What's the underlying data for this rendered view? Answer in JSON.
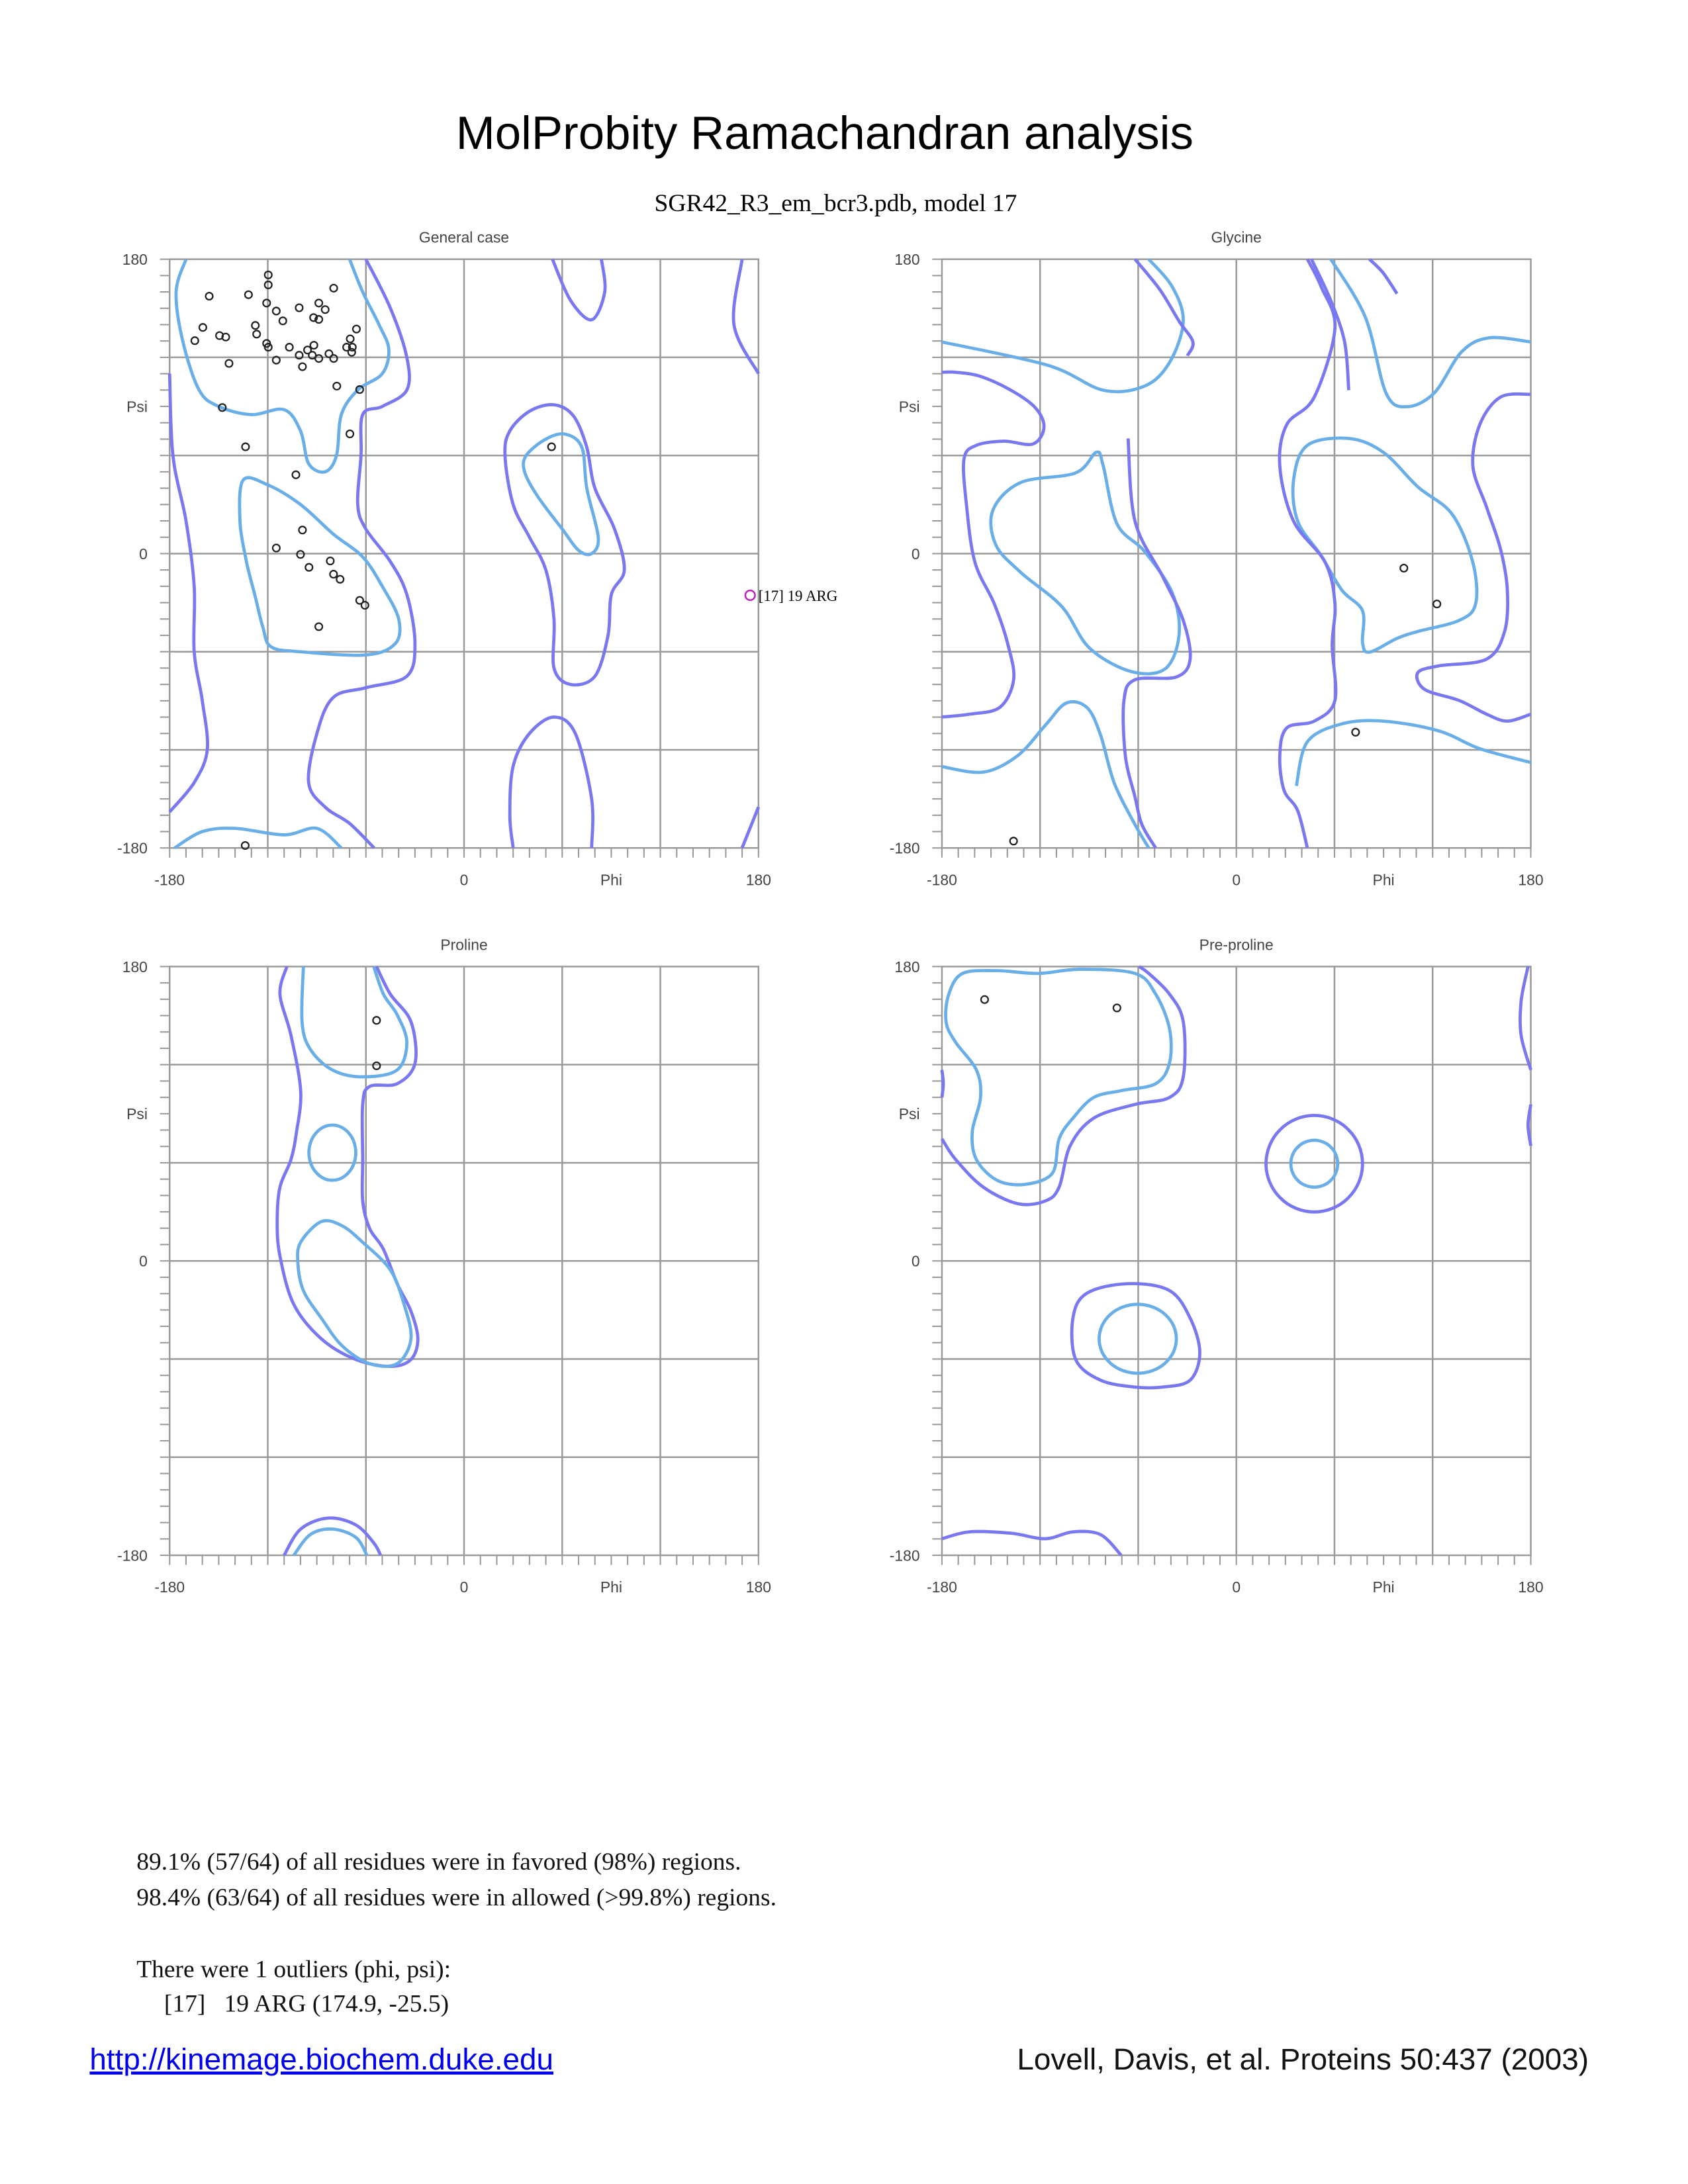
{
  "title": "MolProbity Ramachandran analysis",
  "subtitle": "SGR42_R3_em_bcr3.pdb, model 17",
  "axis": {
    "x_ticks": [
      "-180",
      "0",
      "Phi",
      "180"
    ],
    "y_ticks": [
      "180",
      "Psi",
      "0",
      "-180"
    ]
  },
  "colors": {
    "favored_contour": "#6aaee8",
    "allowed_contour": "#7a78f0",
    "outlier": "#c020c0",
    "points": "#222222",
    "link": "#0000ee"
  },
  "chart_data": [
    {
      "type": "scatter",
      "title": "General case",
      "xlabel": "Phi",
      "ylabel": "Psi",
      "xlim": [
        -180,
        180
      ],
      "ylim": [
        -180,
        180
      ],
      "grid": true,
      "points": [
        [
          -119.7,
          170.4
        ],
        [
          -119.7,
          164.3
        ],
        [
          -79.7,
          162.3
        ],
        [
          -155.8,
          157.4
        ],
        [
          -131.8,
          158.3
        ],
        [
          -120.7,
          153.2
        ],
        [
          -100.8,
          150.3
        ],
        [
          -88.8,
          153.2
        ],
        [
          -84.9,
          149.2
        ],
        [
          -114.8,
          148.3
        ],
        [
          -110.8,
          142.3
        ],
        [
          -92.0,
          144.3
        ],
        [
          -88.8,
          143.2
        ],
        [
          -159.7,
          138.3
        ],
        [
          -127.6,
          139.5
        ],
        [
          -126.8,
          134.2
        ],
        [
          -149.5,
          133.3
        ],
        [
          -145.7,
          132.4
        ],
        [
          -164.6,
          130.2
        ],
        [
          -120.7,
          128.5
        ],
        [
          -119.7,
          126.2
        ],
        [
          -106.8,
          126.2
        ],
        [
          -91.8,
          127.4
        ],
        [
          -95.7,
          124.5
        ],
        [
          -100.8,
          121.3
        ],
        [
          -92.8,
          121.3
        ],
        [
          -88.8,
          119.3
        ],
        [
          -82.6,
          122.2
        ],
        [
          -79.7,
          119.3
        ],
        [
          -71.8,
          126.2
        ],
        [
          -69.6,
          131.3
        ],
        [
          -68.3,
          126.2
        ],
        [
          -68.7,
          123.1
        ],
        [
          -65.8,
          137.3
        ],
        [
          -114.8,
          118.3
        ],
        [
          -98.8,
          114.3
        ],
        [
          -143.7,
          116.3
        ],
        [
          -77.8,
          102.4
        ],
        [
          -63.8,
          100.3
        ],
        [
          -147.8,
          89.3
        ],
        [
          -69.8,
          73.2
        ],
        [
          -133.6,
          65.3
        ],
        [
          -102.8,
          48.2
        ],
        [
          -98.8,
          14.4
        ],
        [
          -114.8,
          3.4
        ],
        [
          -100.0,
          -0.5
        ],
        [
          -94.8,
          -8.4
        ],
        [
          -81.8,
          -4.5
        ],
        [
          -79.8,
          -12.6
        ],
        [
          -75.8,
          -15.7
        ],
        [
          -63.8,
          -28.6
        ],
        [
          -60.6,
          -31.6
        ],
        [
          -88.8,
          -44.7
        ],
        [
          -133.8,
          -178.5
        ],
        [
          53.5,
          65.3
        ]
      ],
      "outliers": [
        {
          "label": "[17]   19 ARG",
          "phi": 174.9,
          "psi": -25.5
        }
      ]
    },
    {
      "type": "scatter",
      "title": "Glycine",
      "xlabel": "Phi",
      "ylabel": "Psi",
      "xlim": [
        -180,
        180
      ],
      "ylim": [
        -180,
        180
      ],
      "grid": true,
      "points": [
        [
          102.4,
          -8.9
        ],
        [
          122.6,
          -30.8
        ],
        [
          72.9,
          -109.2
        ],
        [
          -136.2,
          -175.8
        ]
      ],
      "outliers": []
    },
    {
      "type": "scatter",
      "title": "Proline",
      "xlabel": "Phi",
      "ylabel": "Psi",
      "xlim": [
        -180,
        180
      ],
      "ylim": [
        -180,
        180
      ],
      "grid": true,
      "points": [
        [
          -53.5,
          147.1
        ],
        [
          -53.5,
          119.3
        ]
      ],
      "outliers": []
    },
    {
      "type": "scatter",
      "title": "Pre-proline",
      "xlabel": "Phi",
      "ylabel": "Psi",
      "xlim": [
        -180,
        180
      ],
      "ylim": [
        -180,
        180
      ],
      "grid": true,
      "points": [
        [
          -153.9,
          159.8
        ],
        [
          -73.0,
          154.7
        ]
      ],
      "outliers": []
    }
  ],
  "summary": {
    "favored": "89.1% (57/64) of all residues were in favored (98%) regions.",
    "allowed": "98.4% (63/64) of all residues were in allowed (>99.8%) regions.",
    "outlier_header": "There were 1 outliers (phi, psi):",
    "outlier_lines": [
      "[17]   19 ARG (174.9, -25.5)"
    ]
  },
  "footer": {
    "link": "http://kinemage.biochem.duke.edu",
    "citation": "Lovell, Davis, et al. Proteins 50:437 (2003)"
  }
}
